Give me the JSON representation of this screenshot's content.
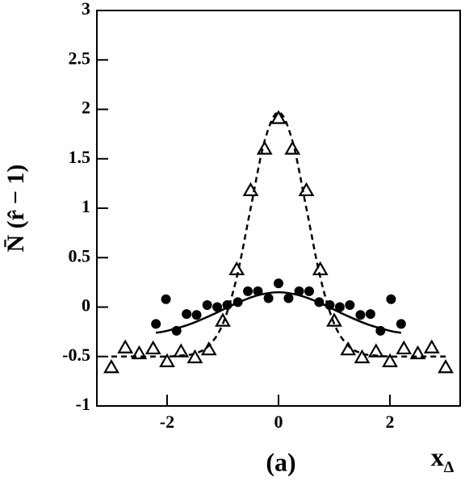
{
  "chart_data": {
    "type": "scatter",
    "ylabel": "N̄ (r̂ − 1)",
    "xlabel": "x",
    "xlabel_sub": "Δ",
    "annotation": "(a)",
    "xlim": [
      -3.26,
      3.26
    ],
    "ylim": [
      -1,
      3
    ],
    "xticks": [
      -2,
      0,
      2
    ],
    "yticks": [
      -1,
      -0.5,
      0,
      0.5,
      1,
      1.5,
      2,
      2.5,
      3
    ],
    "series": [
      {
        "color": "#000000",
        "marker": "triangle",
        "line": "none",
        "x": [
          -3,
          -2.75,
          -2.5,
          -2.25,
          -2,
          -1.75,
          -1.5,
          -1.25,
          -1,
          -0.75,
          -0.5,
          -0.25,
          0,
          0.25,
          0.5,
          0.75,
          1,
          1.25,
          1.5,
          1.75,
          2,
          2.25,
          2.5,
          2.75,
          3
        ],
        "values": [
          -0.61,
          -0.41,
          -0.47,
          -0.42,
          -0.55,
          -0.45,
          -0.51,
          -0.43,
          -0.14,
          0.38,
          1.18,
          1.6,
          1.91,
          1.6,
          1.18,
          0.38,
          -0.14,
          -0.43,
          -0.51,
          -0.45,
          -0.55,
          -0.42,
          -0.47,
          -0.41,
          -0.61
        ]
      },
      {
        "color": "#000000",
        "marker": "circle",
        "line": "none",
        "x": [
          -2.2,
          -2.02,
          -1.83,
          -1.65,
          -1.47,
          -1.28,
          -1.1,
          -0.92,
          -0.73,
          -0.55,
          -0.37,
          -0.18,
          0,
          0.18,
          0.37,
          0.55,
          0.73,
          0.92,
          1.1,
          1.28,
          1.47,
          1.65,
          1.83,
          2.02,
          2.2
        ],
        "values": [
          -0.17,
          0.08,
          -0.24,
          -0.07,
          -0.08,
          0.02,
          0,
          0.02,
          0.05,
          0.16,
          0.16,
          0.09,
          0.24,
          0.09,
          0.16,
          0.16,
          0.05,
          0.02,
          0,
          0.02,
          -0.08,
          -0.07,
          -0.24,
          0.08,
          -0.17
        ]
      },
      {
        "color": "#000000",
        "marker": "none",
        "line": "dashed",
        "x": [
          -3,
          -2.75,
          -2.5,
          -2.25,
          -2,
          -1.75,
          -1.5,
          -1.25,
          -1,
          -0.75,
          -0.5,
          -0.25,
          0,
          0.25,
          0.5,
          0.75,
          1,
          1.25,
          1.5,
          1.75,
          2,
          2.25,
          2.5,
          2.75,
          3
        ],
        "values": [
          -0.5,
          -0.5,
          -0.5,
          -0.5,
          -0.5,
          -0.49,
          -0.47,
          -0.39,
          -0.17,
          0.3,
          1.0,
          1.68,
          1.97,
          1.68,
          1.0,
          0.3,
          -0.17,
          -0.39,
          -0.47,
          -0.49,
          -0.5,
          -0.5,
          -0.5,
          -0.5,
          -0.5
        ]
      },
      {
        "color": "#000000",
        "marker": "none",
        "line": "solid",
        "x": [
          -2.2,
          -2,
          -1.6,
          -1.2,
          -0.8,
          -0.4,
          0,
          0.4,
          0.8,
          1.2,
          1.6,
          2,
          2.2
        ],
        "values": [
          -0.26,
          -0.24,
          -0.175,
          -0.08,
          0.027,
          0.115,
          0.15,
          0.115,
          0.027,
          -0.08,
          -0.175,
          -0.24,
          -0.26
        ]
      }
    ]
  }
}
